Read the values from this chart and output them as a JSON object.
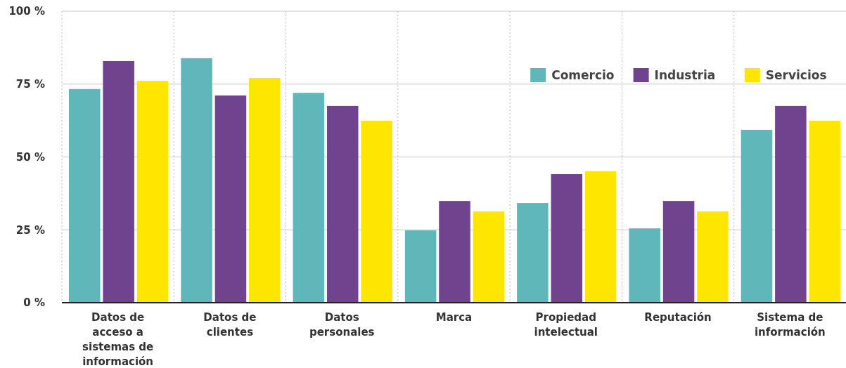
{
  "chart_data": {
    "type": "bar",
    "categories": [
      "Datos de acceso a sistemas de información",
      "Datos de clientes",
      "Datos personales",
      "Marca",
      "Propiedad intelectual",
      "Reputación",
      "Sistema de información"
    ],
    "series": [
      {
        "name": "Comercio",
        "color": "#5fb7b9",
        "values": [
          73.3,
          83.9,
          72.0,
          24.8,
          34.2,
          25.5,
          59.3
        ]
      },
      {
        "name": "Industria",
        "color": "#6f438e",
        "values": [
          82.9,
          71.1,
          67.5,
          34.9,
          44.1,
          34.9,
          67.5
        ]
      },
      {
        "name": "Servicios",
        "color": "#ffe600",
        "values": [
          76.1,
          77.1,
          62.4,
          31.3,
          45.1,
          31.3,
          62.4
        ]
      }
    ],
    "ylim": [
      0,
      100
    ],
    "yticks": [
      {
        "value": 0,
        "label": "0 %"
      },
      {
        "value": 25,
        "label": "25 %"
      },
      {
        "value": 50,
        "label": "50 %"
      },
      {
        "value": 75,
        "label": "75 %"
      },
      {
        "value": 100,
        "label": "100 %"
      }
    ],
    "grid": true,
    "legend": "top right"
  }
}
